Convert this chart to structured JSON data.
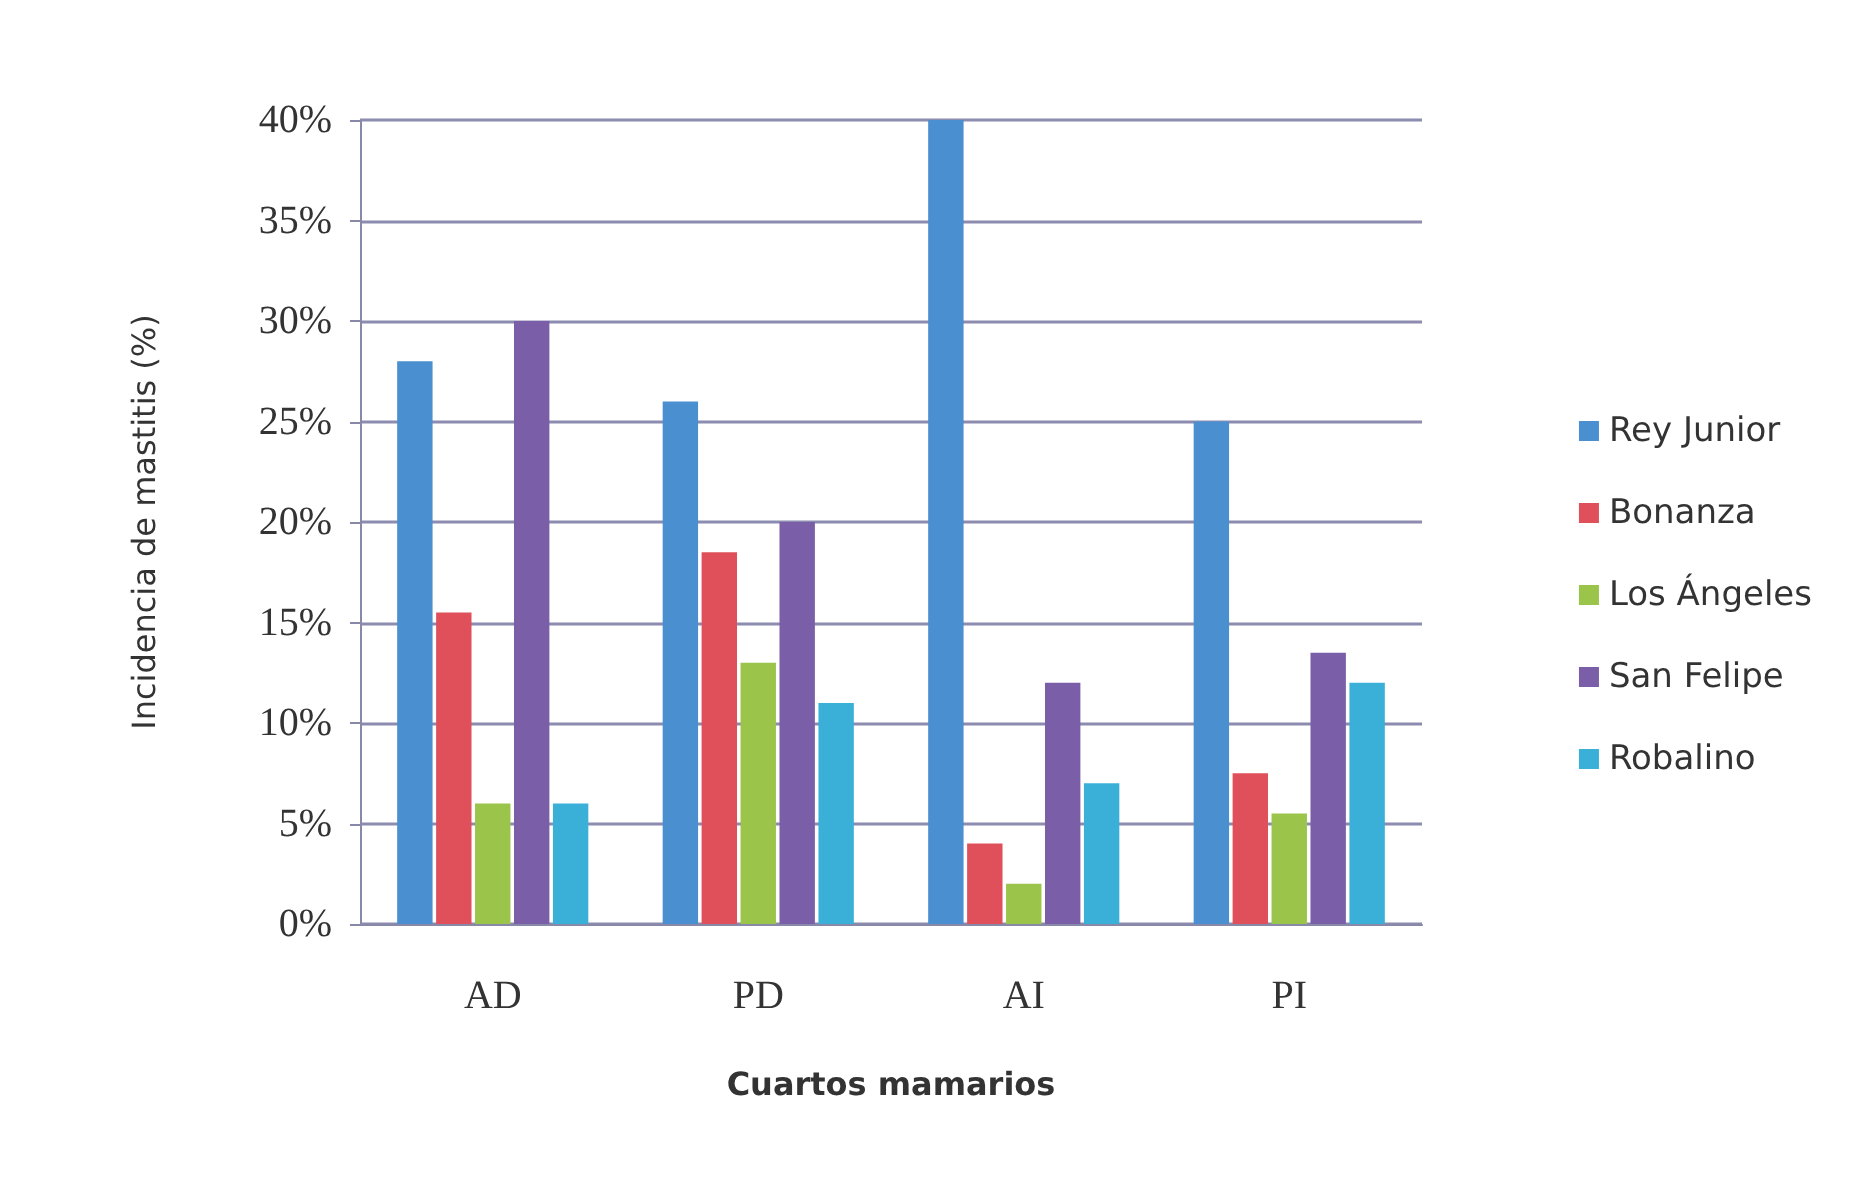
{
  "chart_data": {
    "type": "bar",
    "xlabel": "Cuartos mamarios",
    "ylabel": "Incidencia de mastitis (%)",
    "categories": [
      "AD",
      "PD",
      "AI",
      "PI"
    ],
    "series": [
      {
        "name": "Rey Junior",
        "color": "#4a8fd0",
        "values": [
          28,
          26,
          40,
          25
        ]
      },
      {
        "name": "Bonanza",
        "color": "#e0505a",
        "values": [
          15.5,
          18.5,
          4,
          7.5
        ]
      },
      {
        "name": "Los Ángeles",
        "color": "#9bc44a",
        "values": [
          6,
          13,
          2,
          5.5
        ]
      },
      {
        "name": "San Felipe",
        "color": "#7b5ea8",
        "values": [
          30,
          20,
          12,
          13.5
        ]
      },
      {
        "name": "Robalino",
        "color": "#3ab0d8",
        "values": [
          6,
          11,
          7,
          12
        ]
      }
    ],
    "ylim": [
      0,
      40
    ],
    "yticks": [
      {
        "value": 0,
        "label": "0%"
      },
      {
        "value": 5,
        "label": "5%"
      },
      {
        "value": 10,
        "label": "10%"
      },
      {
        "value": 15,
        "label": "15%"
      },
      {
        "value": 20,
        "label": "20%"
      },
      {
        "value": 25,
        "label": "25%"
      },
      {
        "value": 30,
        "label": "30%"
      },
      {
        "value": 35,
        "label": "35%"
      },
      {
        "value": 40,
        "label": "40%"
      }
    ],
    "grid": "y",
    "legend": "right"
  }
}
